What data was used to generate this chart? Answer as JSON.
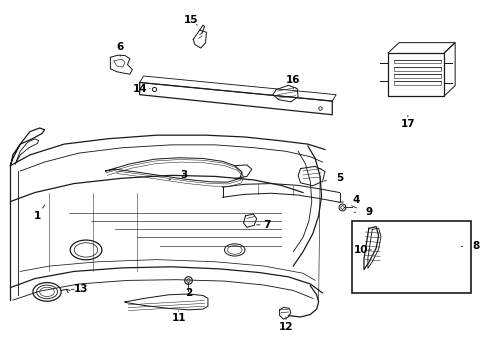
{
  "background_color": "#ffffff",
  "line_color": "#1a1a1a",
  "label_color": "#000000",
  "figsize": [
    4.89,
    3.6
  ],
  "dpi": 100,
  "parts_labels": [
    [
      1,
      0.075,
      0.6,
      0.09,
      0.57
    ],
    [
      2,
      0.385,
      0.815,
      0.385,
      0.79
    ],
    [
      3,
      0.375,
      0.485,
      0.345,
      0.5
    ],
    [
      4,
      0.73,
      0.555,
      0.685,
      0.565
    ],
    [
      5,
      0.695,
      0.495,
      0.655,
      0.505
    ],
    [
      6,
      0.245,
      0.13,
      0.245,
      0.155
    ],
    [
      7,
      0.545,
      0.625,
      0.525,
      0.625
    ],
    [
      8,
      0.975,
      0.685,
      0.945,
      0.685
    ],
    [
      9,
      0.755,
      0.59,
      0.725,
      0.59
    ],
    [
      10,
      0.74,
      0.695,
      0.76,
      0.695
    ],
    [
      11,
      0.365,
      0.885,
      0.365,
      0.865
    ],
    [
      12,
      0.585,
      0.91,
      0.585,
      0.882
    ],
    [
      13,
      0.165,
      0.805,
      0.145,
      0.805
    ],
    [
      14,
      0.285,
      0.245,
      0.315,
      0.245
    ],
    [
      15,
      0.39,
      0.055,
      0.41,
      0.075
    ],
    [
      16,
      0.6,
      0.22,
      0.6,
      0.245
    ],
    [
      17,
      0.835,
      0.345,
      0.835,
      0.32
    ]
  ]
}
